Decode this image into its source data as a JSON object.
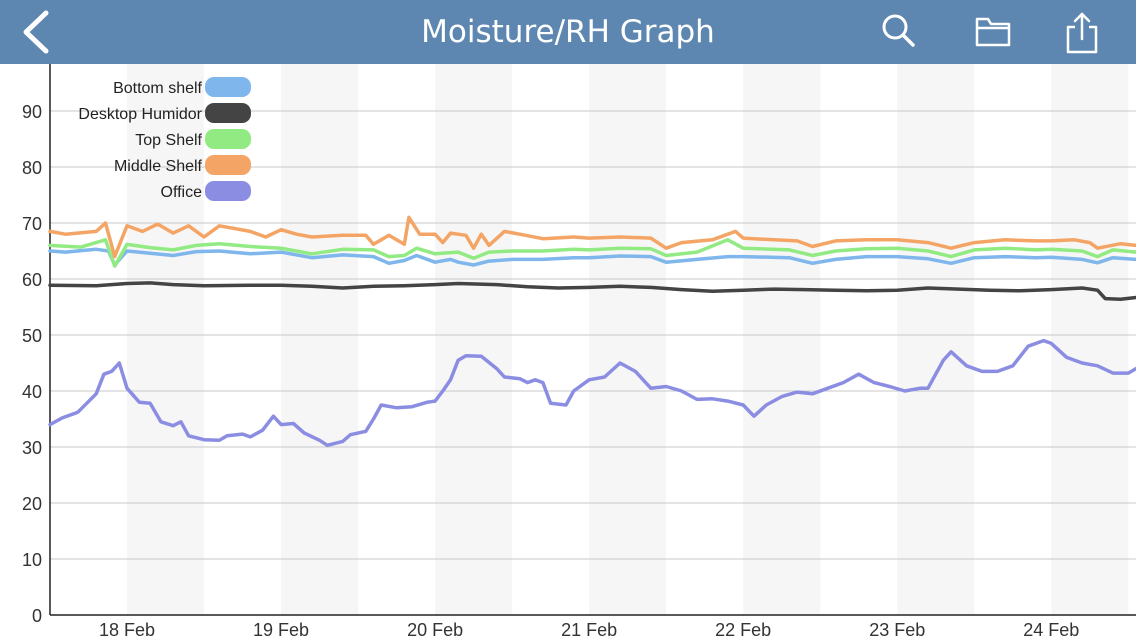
{
  "header": {
    "title": "Moisture/RH Graph",
    "back_icon": "chevron-left-icon",
    "search_icon": "search-icon",
    "folder_icon": "folder-icon",
    "share_icon": "share-icon",
    "bar_color": "#5d87b0"
  },
  "chart_data": {
    "type": "line",
    "title": "",
    "xlabel": "",
    "ylabel": "",
    "ylim": [
      0,
      100
    ],
    "yticks": [
      0,
      10,
      20,
      30,
      40,
      50,
      60,
      70,
      80,
      90,
      100
    ],
    "x_tick_labels": [
      "18 Feb",
      "19 Feb",
      "20 Feb",
      "21 Feb",
      "22 Feb",
      "23 Feb",
      "24 Feb"
    ],
    "xlim": [
      17.5,
      24.55
    ],
    "grid": true,
    "legend": "top-left",
    "series": [
      {
        "name": "Bottom shelf",
        "color": "#7fb6ec",
        "points": [
          [
            17.5,
            65
          ],
          [
            17.6,
            64.8
          ],
          [
            17.8,
            65.3
          ],
          [
            17.88,
            65
          ],
          [
            17.92,
            62.5
          ],
          [
            18.0,
            65
          ],
          [
            18.15,
            64.6
          ],
          [
            18.3,
            64.2
          ],
          [
            18.45,
            64.9
          ],
          [
            18.6,
            65
          ],
          [
            18.8,
            64.5
          ],
          [
            19.0,
            64.8
          ],
          [
            19.2,
            63.8
          ],
          [
            19.4,
            64.3
          ],
          [
            19.6,
            64
          ],
          [
            19.7,
            62.8
          ],
          [
            19.8,
            63.3
          ],
          [
            19.88,
            64.2
          ],
          [
            20.0,
            63
          ],
          [
            20.1,
            63.5
          ],
          [
            20.15,
            63
          ],
          [
            20.25,
            62.5
          ],
          [
            20.35,
            63.2
          ],
          [
            20.5,
            63.5
          ],
          [
            20.7,
            63.5
          ],
          [
            20.9,
            63.8
          ],
          [
            21.0,
            63.8
          ],
          [
            21.2,
            64.1
          ],
          [
            21.4,
            64
          ],
          [
            21.5,
            63
          ],
          [
            21.7,
            63.5
          ],
          [
            21.9,
            64
          ],
          [
            22.0,
            64
          ],
          [
            22.3,
            63.8
          ],
          [
            22.45,
            62.8
          ],
          [
            22.6,
            63.5
          ],
          [
            22.8,
            64
          ],
          [
            23.0,
            64
          ],
          [
            23.2,
            63.6
          ],
          [
            23.35,
            62.8
          ],
          [
            23.5,
            63.8
          ],
          [
            23.7,
            64
          ],
          [
            23.9,
            63.8
          ],
          [
            24.0,
            63.9
          ],
          [
            24.2,
            63.5
          ],
          [
            24.3,
            62.9
          ],
          [
            24.4,
            63.8
          ],
          [
            24.55,
            63.5
          ]
        ]
      },
      {
        "name": "Desktop  Humidor",
        "color": "#444444",
        "points": [
          [
            17.5,
            58.9
          ],
          [
            17.8,
            58.8
          ],
          [
            18.0,
            59.2
          ],
          [
            18.15,
            59.3
          ],
          [
            18.3,
            59
          ],
          [
            18.5,
            58.8
          ],
          [
            18.8,
            58.9
          ],
          [
            19.0,
            58.9
          ],
          [
            19.2,
            58.7
          ],
          [
            19.4,
            58.4
          ],
          [
            19.6,
            58.7
          ],
          [
            19.8,
            58.8
          ],
          [
            20.0,
            59
          ],
          [
            20.15,
            59.2
          ],
          [
            20.4,
            59
          ],
          [
            20.6,
            58.6
          ],
          [
            20.8,
            58.4
          ],
          [
            21.0,
            58.5
          ],
          [
            21.2,
            58.7
          ],
          [
            21.4,
            58.5
          ],
          [
            21.6,
            58.1
          ],
          [
            21.8,
            57.8
          ],
          [
            22.0,
            58
          ],
          [
            22.2,
            58.2
          ],
          [
            22.4,
            58.1
          ],
          [
            22.6,
            58
          ],
          [
            22.8,
            57.9
          ],
          [
            23.0,
            58
          ],
          [
            23.2,
            58.4
          ],
          [
            23.4,
            58.2
          ],
          [
            23.6,
            58
          ],
          [
            23.8,
            57.9
          ],
          [
            24.0,
            58.1
          ],
          [
            24.2,
            58.4
          ],
          [
            24.3,
            58
          ],
          [
            24.35,
            56.5
          ],
          [
            24.45,
            56.4
          ],
          [
            24.55,
            56.7
          ]
        ]
      },
      {
        "name": "Top Shelf",
        "color": "#92ea82",
        "points": [
          [
            17.5,
            66
          ],
          [
            17.7,
            65.7
          ],
          [
            17.86,
            67
          ],
          [
            17.92,
            62.3
          ],
          [
            18.0,
            66.2
          ],
          [
            18.15,
            65.6
          ],
          [
            18.3,
            65.2
          ],
          [
            18.45,
            66
          ],
          [
            18.6,
            66.3
          ],
          [
            18.8,
            65.8
          ],
          [
            19.0,
            65.5
          ],
          [
            19.2,
            64.5
          ],
          [
            19.4,
            65.3
          ],
          [
            19.6,
            65.2
          ],
          [
            19.7,
            64
          ],
          [
            19.8,
            64.2
          ],
          [
            19.88,
            65.5
          ],
          [
            20.0,
            64.5
          ],
          [
            20.15,
            64.8
          ],
          [
            20.25,
            63.7
          ],
          [
            20.35,
            64.8
          ],
          [
            20.5,
            65
          ],
          [
            20.7,
            65
          ],
          [
            20.9,
            65.3
          ],
          [
            21.0,
            65.2
          ],
          [
            21.2,
            65.5
          ],
          [
            21.4,
            65.4
          ],
          [
            21.5,
            64.2
          ],
          [
            21.7,
            64.8
          ],
          [
            21.9,
            67
          ],
          [
            22.0,
            65.5
          ],
          [
            22.3,
            65.2
          ],
          [
            22.45,
            64.2
          ],
          [
            22.6,
            65
          ],
          [
            22.8,
            65.4
          ],
          [
            23.0,
            65.5
          ],
          [
            23.2,
            65
          ],
          [
            23.35,
            64
          ],
          [
            23.5,
            65.2
          ],
          [
            23.7,
            65.5
          ],
          [
            23.9,
            65.2
          ],
          [
            24.0,
            65.3
          ],
          [
            24.2,
            65
          ],
          [
            24.3,
            64
          ],
          [
            24.4,
            65.2
          ],
          [
            24.55,
            64.8
          ]
        ]
      },
      {
        "name": "Middle Shelf",
        "color": "#f4a565",
        "points": [
          [
            17.5,
            68.5
          ],
          [
            17.6,
            68
          ],
          [
            17.8,
            68.5
          ],
          [
            17.86,
            70
          ],
          [
            17.92,
            64
          ],
          [
            18.0,
            69.5
          ],
          [
            18.1,
            68.5
          ],
          [
            18.2,
            69.8
          ],
          [
            18.3,
            68.2
          ],
          [
            18.4,
            69.5
          ],
          [
            18.5,
            67.5
          ],
          [
            18.6,
            69.5
          ],
          [
            18.8,
            68.5
          ],
          [
            18.9,
            67.5
          ],
          [
            19.0,
            68.8
          ],
          [
            19.1,
            68
          ],
          [
            19.2,
            67.5
          ],
          [
            19.4,
            67.8
          ],
          [
            19.55,
            67.8
          ],
          [
            19.6,
            66.2
          ],
          [
            19.7,
            67.8
          ],
          [
            19.8,
            66.2
          ],
          [
            19.83,
            71
          ],
          [
            19.9,
            68
          ],
          [
            20.0,
            68
          ],
          [
            20.05,
            66.5
          ],
          [
            20.1,
            68.2
          ],
          [
            20.2,
            67.8
          ],
          [
            20.25,
            65.5
          ],
          [
            20.3,
            68
          ],
          [
            20.35,
            66
          ],
          [
            20.45,
            68.5
          ],
          [
            20.55,
            68
          ],
          [
            20.7,
            67.2
          ],
          [
            20.9,
            67.5
          ],
          [
            21.0,
            67.3
          ],
          [
            21.2,
            67.5
          ],
          [
            21.4,
            67.3
          ],
          [
            21.5,
            65.5
          ],
          [
            21.6,
            66.5
          ],
          [
            21.8,
            67
          ],
          [
            21.95,
            68.5
          ],
          [
            22.0,
            67.3
          ],
          [
            22.2,
            67
          ],
          [
            22.35,
            66.8
          ],
          [
            22.45,
            65.8
          ],
          [
            22.6,
            66.8
          ],
          [
            22.8,
            67
          ],
          [
            23.0,
            67
          ],
          [
            23.2,
            66.5
          ],
          [
            23.35,
            65.5
          ],
          [
            23.5,
            66.5
          ],
          [
            23.7,
            67
          ],
          [
            23.9,
            66.8
          ],
          [
            24.0,
            66.8
          ],
          [
            24.15,
            67
          ],
          [
            24.25,
            66.5
          ],
          [
            24.3,
            65.5
          ],
          [
            24.45,
            66.3
          ],
          [
            24.55,
            66
          ]
        ]
      },
      {
        "name": "Office",
        "color": "#8b8de3",
        "points": [
          [
            17.5,
            34
          ],
          [
            17.58,
            35.2
          ],
          [
            17.68,
            36.2
          ],
          [
            17.8,
            39.5
          ],
          [
            17.85,
            43
          ],
          [
            17.9,
            43.5
          ],
          [
            17.95,
            45
          ],
          [
            18.0,
            40.5
          ],
          [
            18.08,
            38
          ],
          [
            18.15,
            37.8
          ],
          [
            18.22,
            34.5
          ],
          [
            18.3,
            33.8
          ],
          [
            18.35,
            34.5
          ],
          [
            18.4,
            32
          ],
          [
            18.5,
            31.3
          ],
          [
            18.6,
            31.2
          ],
          [
            18.65,
            32
          ],
          [
            18.75,
            32.3
          ],
          [
            18.8,
            31.8
          ],
          [
            18.88,
            33
          ],
          [
            18.95,
            35.5
          ],
          [
            19.0,
            34
          ],
          [
            19.08,
            34.2
          ],
          [
            19.15,
            32.5
          ],
          [
            19.25,
            31.2
          ],
          [
            19.3,
            30.3
          ],
          [
            19.4,
            31
          ],
          [
            19.45,
            32.2
          ],
          [
            19.55,
            32.8
          ],
          [
            19.6,
            35
          ],
          [
            19.65,
            37.5
          ],
          [
            19.75,
            37
          ],
          [
            19.85,
            37.2
          ],
          [
            19.95,
            38
          ],
          [
            20.0,
            38.2
          ],
          [
            20.05,
            40
          ],
          [
            20.1,
            42
          ],
          [
            20.15,
            45.5
          ],
          [
            20.2,
            46.3
          ],
          [
            20.3,
            46.2
          ],
          [
            20.4,
            44
          ],
          [
            20.45,
            42.5
          ],
          [
            20.55,
            42.2
          ],
          [
            20.6,
            41.5
          ],
          [
            20.65,
            42
          ],
          [
            20.7,
            41.5
          ],
          [
            20.75,
            37.8
          ],
          [
            20.85,
            37.5
          ],
          [
            20.9,
            40
          ],
          [
            21.0,
            42
          ],
          [
            21.1,
            42.5
          ],
          [
            21.2,
            45
          ],
          [
            21.3,
            43.5
          ],
          [
            21.4,
            40.5
          ],
          [
            21.5,
            40.8
          ],
          [
            21.6,
            40
          ],
          [
            21.7,
            38.5
          ],
          [
            21.8,
            38.6
          ],
          [
            21.9,
            38.2
          ],
          [
            22.0,
            37.5
          ],
          [
            22.07,
            35.5
          ],
          [
            22.15,
            37.5
          ],
          [
            22.25,
            39
          ],
          [
            22.35,
            39.8
          ],
          [
            22.45,
            39.5
          ],
          [
            22.55,
            40.5
          ],
          [
            22.65,
            41.5
          ],
          [
            22.75,
            43
          ],
          [
            22.85,
            41.5
          ],
          [
            22.95,
            40.8
          ],
          [
            23.05,
            40
          ],
          [
            23.15,
            40.5
          ],
          [
            23.2,
            40.5
          ],
          [
            23.3,
            45.5
          ],
          [
            23.35,
            47
          ],
          [
            23.45,
            44.5
          ],
          [
            23.55,
            43.5
          ],
          [
            23.65,
            43.5
          ],
          [
            23.75,
            44.5
          ],
          [
            23.85,
            48
          ],
          [
            23.95,
            49
          ],
          [
            24.0,
            48.5
          ],
          [
            24.1,
            46
          ],
          [
            24.2,
            45
          ],
          [
            24.3,
            44.5
          ],
          [
            24.4,
            43.2
          ],
          [
            24.5,
            43.2
          ],
          [
            24.55,
            44
          ]
        ]
      }
    ]
  }
}
